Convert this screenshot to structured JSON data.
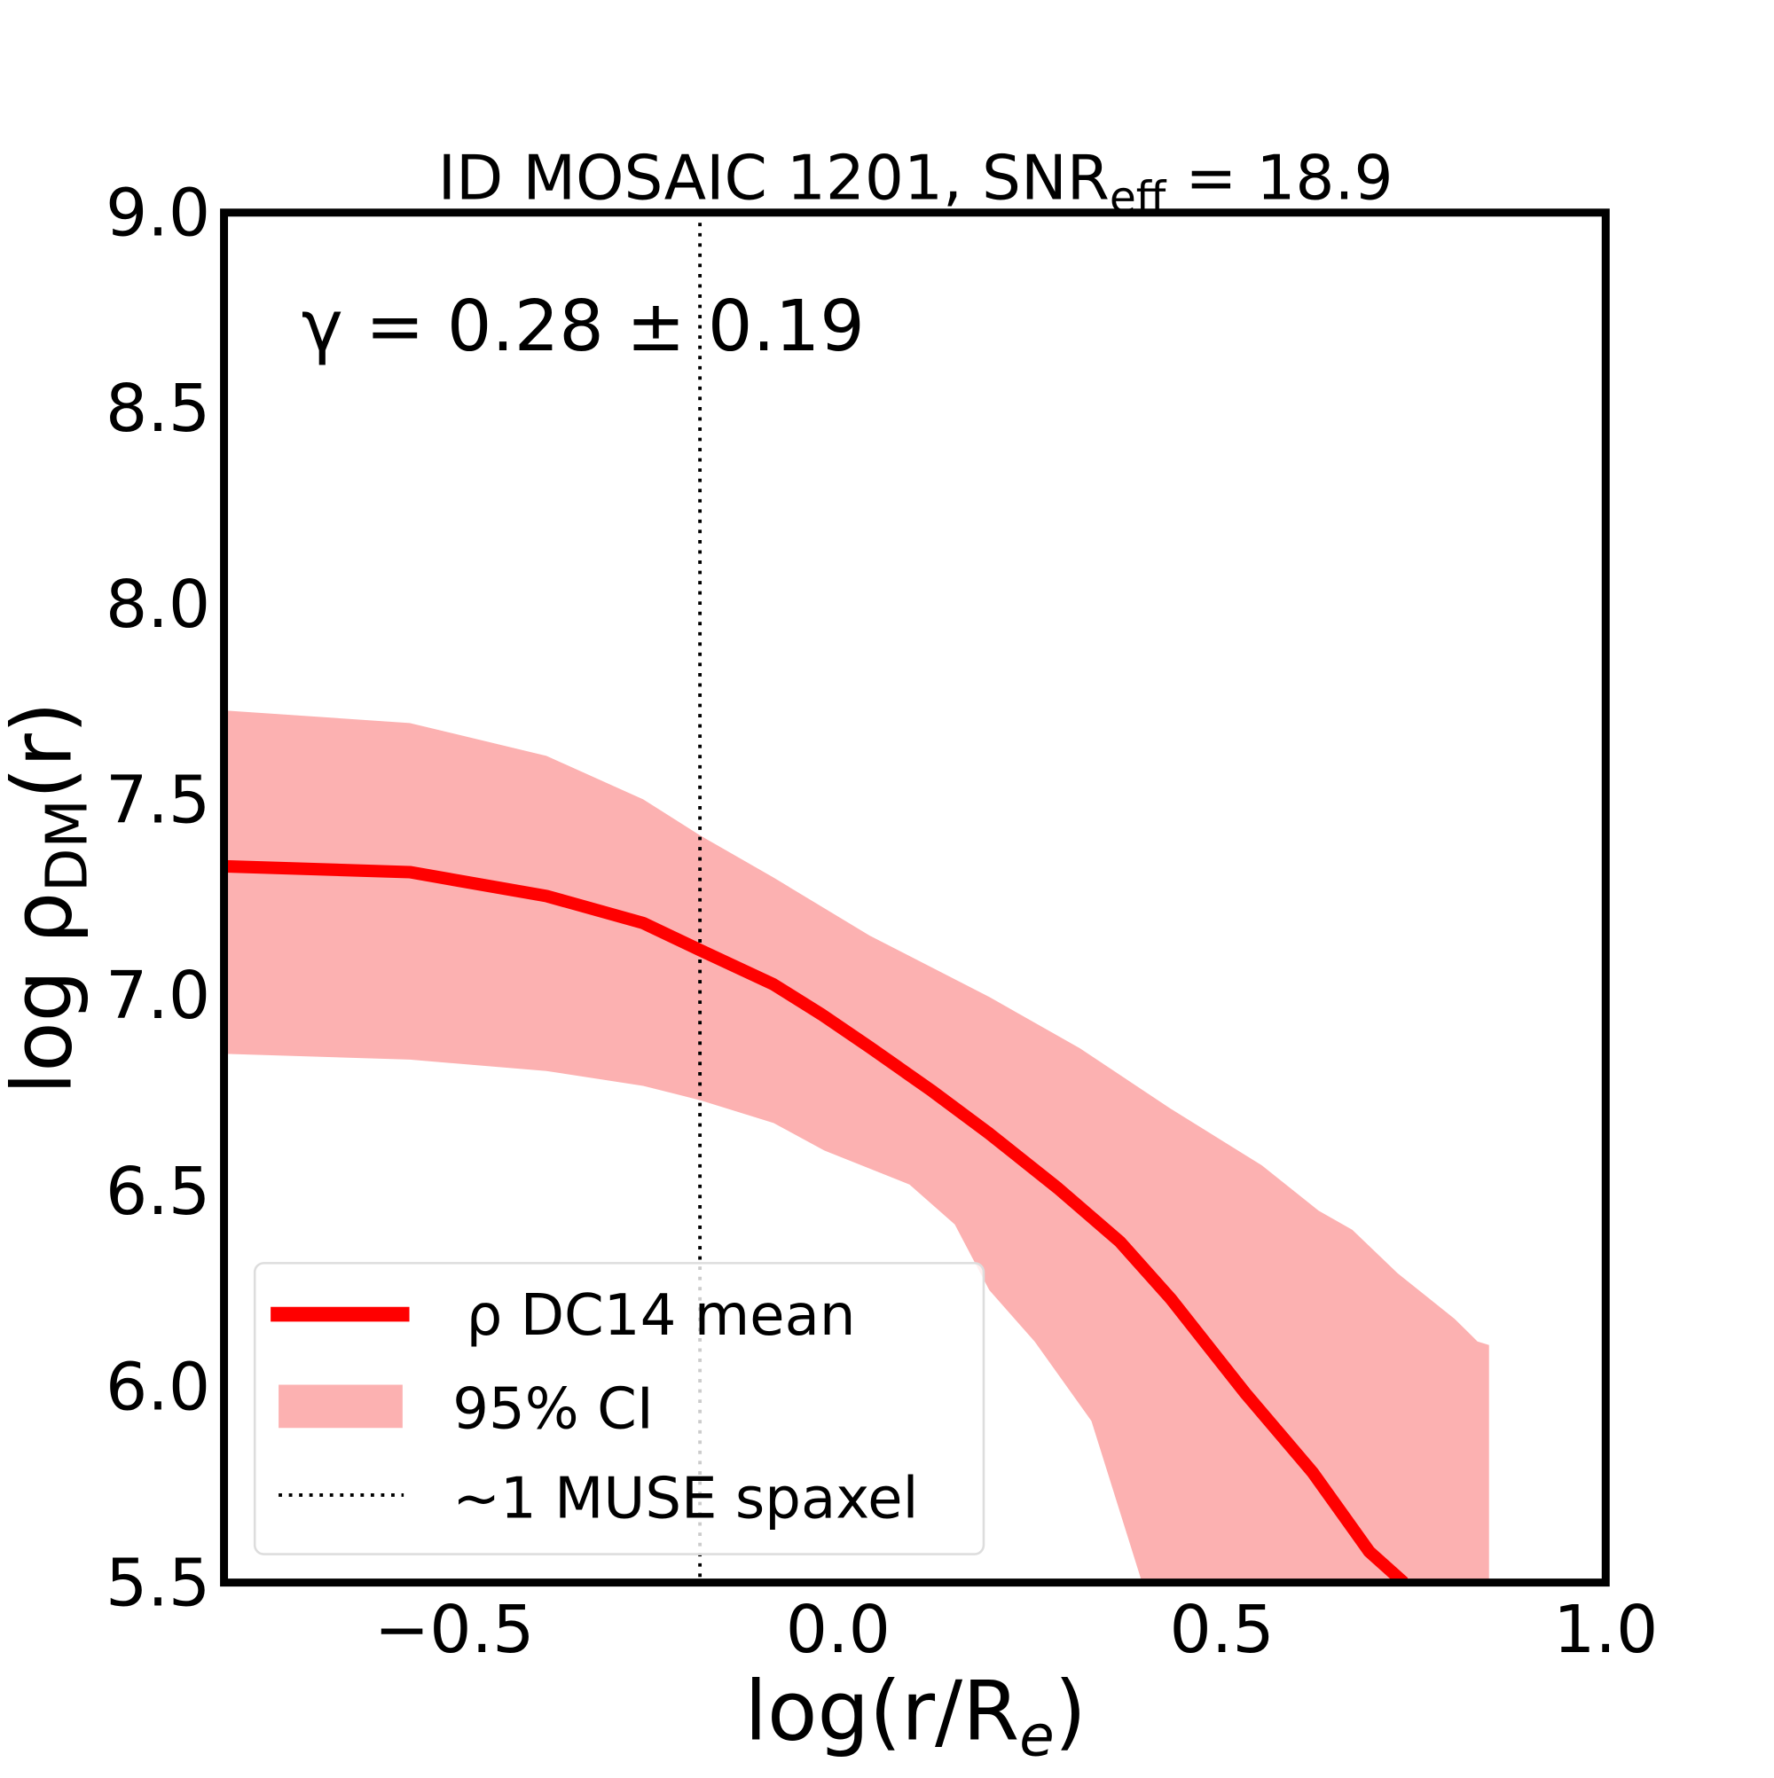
{
  "chart_data": {
    "type": "line",
    "title": "ID MOSAIC 1201, SNR",
    "title_sub": "eff",
    "title_suffix": " = 18.9",
    "xlabel": "log(r/R",
    "xlabel_sub": "e",
    "xlabel_suffix": ")",
    "ylabel": "log ρ",
    "ylabel_sub": "DM",
    "ylabel_suffix": "(r)",
    "xlim": [
      -0.8,
      1.0
    ],
    "ylim": [
      5.5,
      9.0
    ],
    "xticks": [
      -0.5,
      0.0,
      0.5,
      1.0
    ],
    "xtick_labels": [
      "−0.5",
      "0.0",
      "0.5",
      "1.0"
    ],
    "yticks": [
      5.5,
      6.0,
      6.5,
      7.0,
      7.5,
      8.0,
      8.5,
      9.0
    ],
    "ytick_labels": [
      "5.5",
      "6.0",
      "6.5",
      "7.0",
      "7.5",
      "8.0",
      "8.5",
      "9.0"
    ],
    "grid": false,
    "annotation": "γ = 0.28 ± 0.19",
    "vline_x": -0.18,
    "colors": {
      "mean": "#ff0000",
      "band": "#fcb1b1",
      "vline": "#000000"
    },
    "series": [
      {
        "name": "ρ DC14 mean",
        "x": [
          -0.8,
          -0.558,
          -0.38,
          -0.254,
          -0.179,
          -0.084,
          -0.022,
          0.041,
          0.123,
          0.197,
          0.286,
          0.367,
          0.433,
          0.53,
          0.618,
          0.692,
          0.737
        ],
        "y": [
          7.33,
          7.315,
          7.254,
          7.185,
          7.115,
          7.028,
          6.952,
          6.868,
          6.755,
          6.647,
          6.508,
          6.371,
          6.226,
          5.985,
          5.782,
          5.579,
          5.5
        ]
      }
    ],
    "band": {
      "name": "95% CI",
      "upper_x": [
        -0.8,
        -0.558,
        -0.38,
        -0.254,
        -0.179,
        -0.084,
        0.041,
        0.197,
        0.315,
        0.433,
        0.552,
        0.626,
        0.67,
        0.729,
        0.803,
        0.833,
        0.848
      ],
      "upper_y": [
        7.728,
        7.696,
        7.612,
        7.501,
        7.408,
        7.301,
        7.153,
        6.996,
        6.865,
        6.711,
        6.566,
        6.45,
        6.401,
        6.29,
        6.174,
        6.116,
        6.107
      ],
      "lower_x": [
        -0.8,
        -0.558,
        -0.38,
        -0.254,
        -0.179,
        -0.084,
        -0.018,
        0.093,
        0.152,
        0.197,
        0.256,
        0.33,
        0.396
      ],
      "lower_y": [
        6.851,
        6.836,
        6.807,
        6.769,
        6.732,
        6.674,
        6.604,
        6.517,
        6.415,
        6.247,
        6.116,
        5.913,
        5.5
      ]
    },
    "legend": {
      "placement": "lower-left",
      "entries": [
        "ρ DC14 mean",
        "95% CI",
        "~1 MUSE spaxel"
      ]
    }
  }
}
